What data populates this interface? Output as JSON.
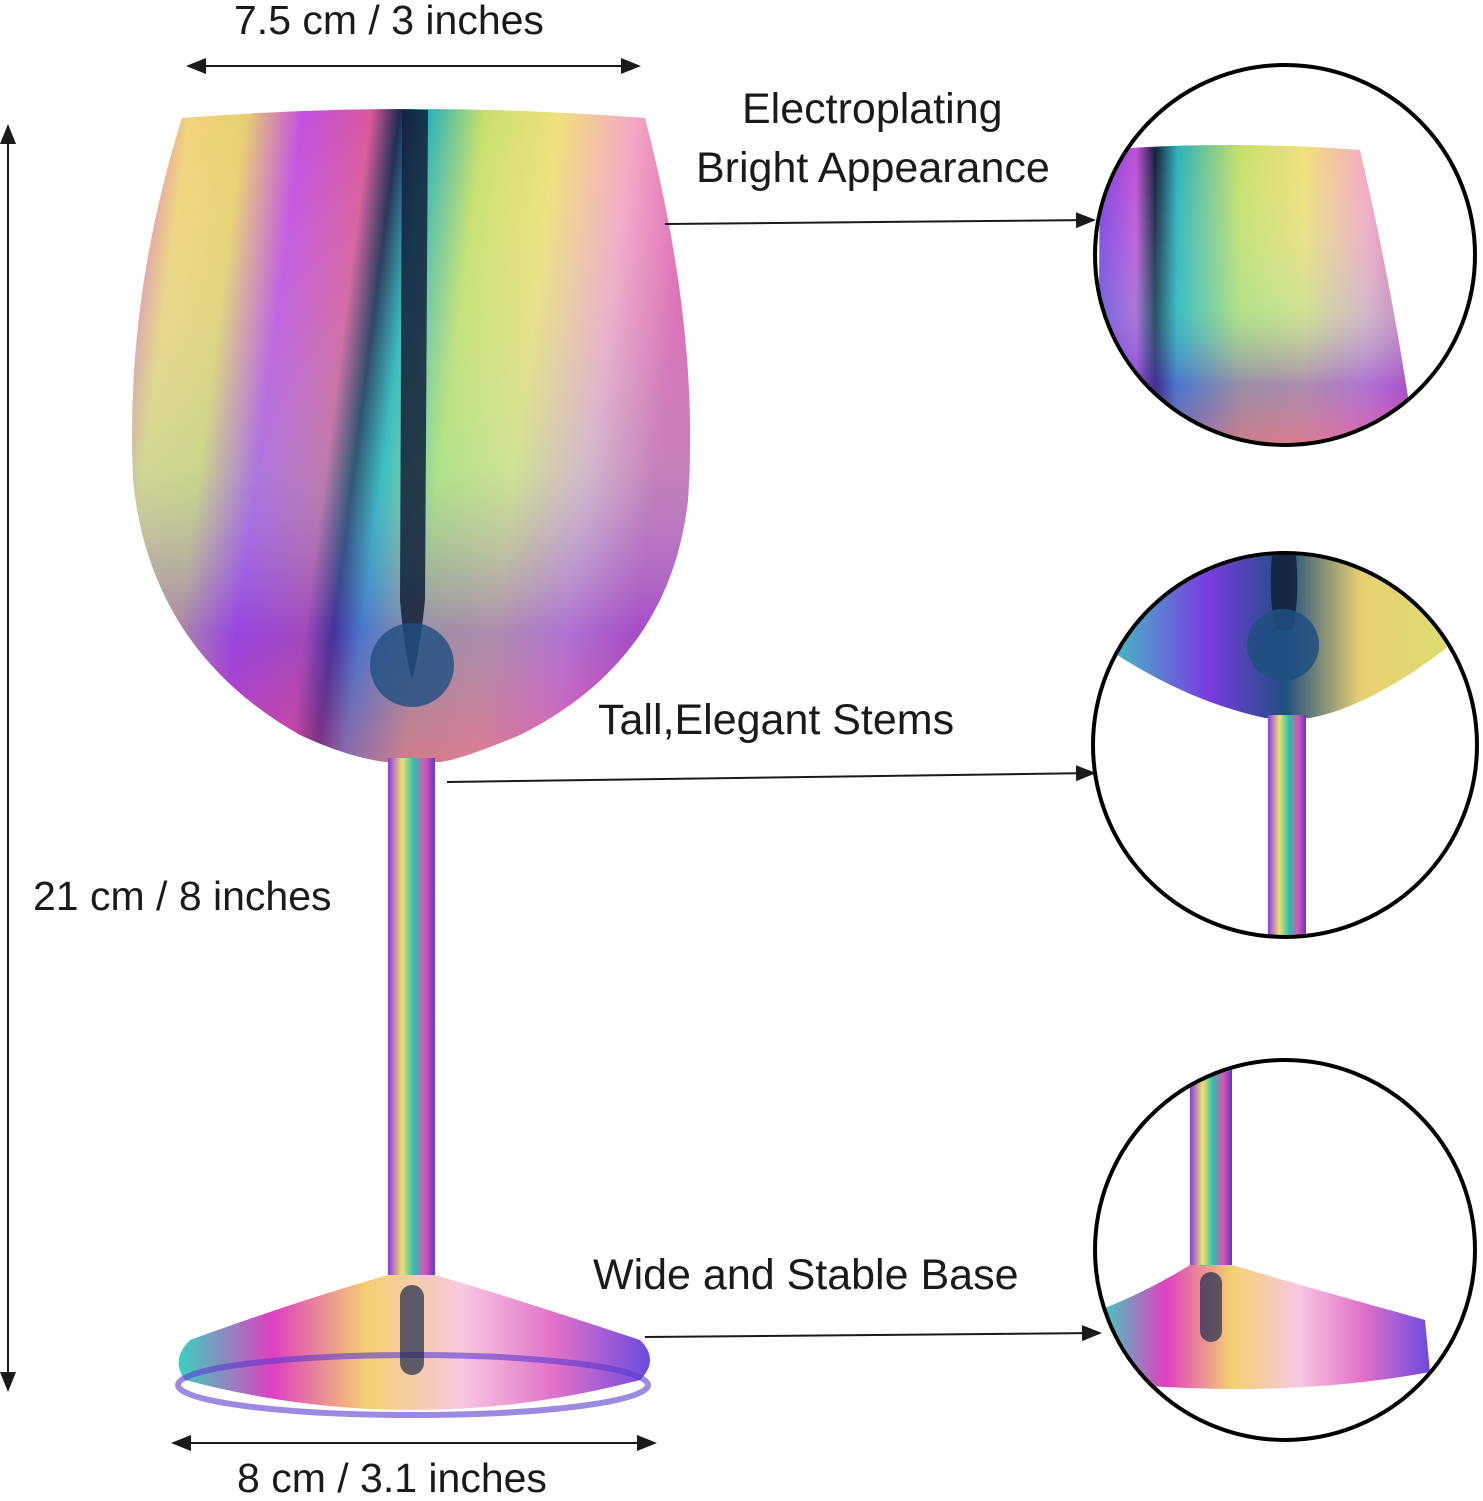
{
  "dimensions": {
    "top_width": "7.5 cm / 3 inches",
    "height": "21 cm / 8 inches",
    "base_width": "8 cm / 3.1 inches"
  },
  "features": [
    {
      "line1": "Electroplating",
      "line2": "Bright Appearance"
    },
    {
      "line1": "Tall,Elegant Stems"
    },
    {
      "line1": "Wide and Stable Base"
    }
  ],
  "colors": {
    "line": "#1a1a1a",
    "rainbow": [
      "#c23bd8",
      "#f0a0c8",
      "#f2e66a",
      "#7fe07a",
      "#27c9c9",
      "#3a5ee0",
      "#e040a0"
    ]
  }
}
